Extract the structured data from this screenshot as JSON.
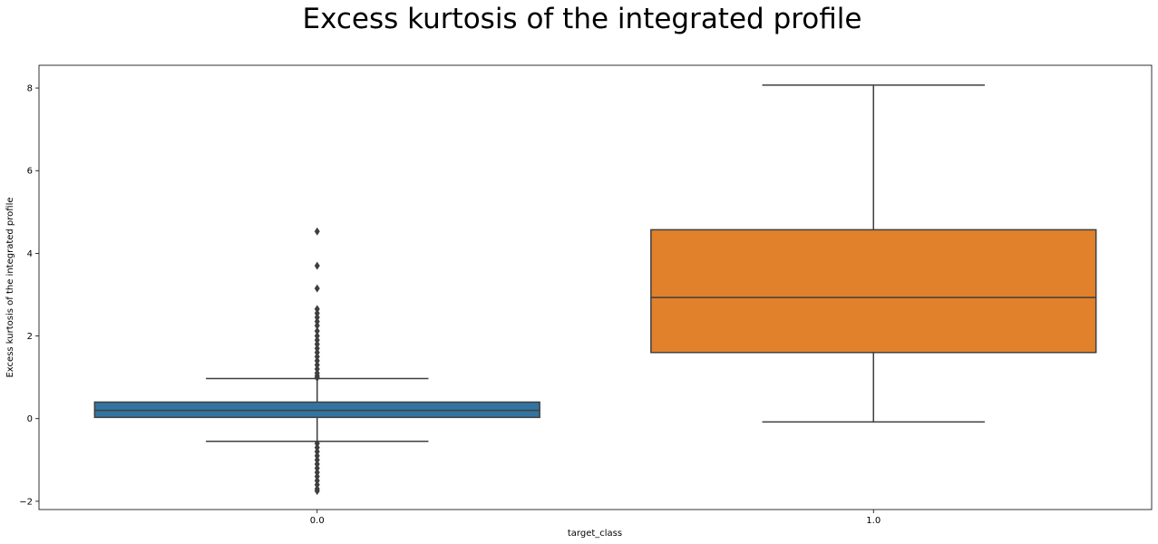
{
  "chart_data": {
    "type": "box",
    "title": "Excess kurtosis of the integrated profile",
    "xlabel": "target_class",
    "ylabel": "Excess kurtosis of the integrated profile",
    "ylim": [
      -2.2,
      8.55
    ],
    "yticks": [
      -2,
      0,
      2,
      4,
      6,
      8
    ],
    "ytick_labels": [
      "−2",
      "0",
      "2",
      "4",
      "6",
      "8"
    ],
    "categories": [
      "0.0",
      "1.0"
    ],
    "grid": false,
    "legend": "none",
    "boxes": [
      {
        "category": "0.0",
        "color": "#3274a1",
        "whisker_low": -0.55,
        "q1": 0.03,
        "median": 0.2,
        "q3": 0.4,
        "whisker_high": 0.97,
        "outliers": [
          4.53,
          3.7,
          3.15,
          2.65,
          2.55,
          2.45,
          2.35,
          2.25,
          2.12,
          2.0,
          1.9,
          1.8,
          1.7,
          1.6,
          1.5,
          1.4,
          1.3,
          1.2,
          1.1,
          1.03,
          0.99,
          -0.6,
          -0.7,
          -0.8,
          -0.9,
          -1.0,
          -1.1,
          -1.2,
          -1.3,
          -1.4,
          -1.5,
          -1.6,
          -1.7,
          -1.75
        ]
      },
      {
        "category": "1.0",
        "color": "#e1812c",
        "whisker_low": -0.08,
        "q1": 1.6,
        "median": 2.93,
        "q3": 4.57,
        "whisker_high": 8.07,
        "outliers": []
      }
    ]
  }
}
